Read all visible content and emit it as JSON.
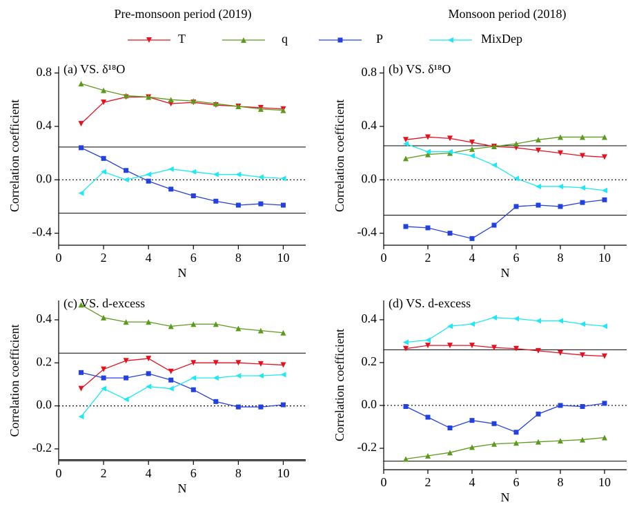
{
  "headers": [
    "Pre-monsoon period (2019)",
    "Monsoon period (2018)"
  ],
  "chart_data": [
    {
      "type": "line",
      "title": "(a) VS. δ¹⁸O",
      "x_label": "N",
      "y_label": "Correlation coefficient",
      "x": [
        1,
        2,
        3,
        4,
        5,
        6,
        7,
        8,
        9,
        10
      ],
      "xlim": [
        0,
        11
      ],
      "xticks": [
        0,
        2,
        4,
        6,
        8,
        10
      ],
      "ylim": [
        -0.49,
        0.85
      ],
      "yticks": [
        -0.4,
        {
          "value": 0,
          "label": "0.0"
        },
        0.4,
        0.8
      ],
      "reference_lines": [
        0.245,
        -0.25
      ],
      "zero_line": true,
      "series": [
        {
          "name": "T",
          "color": "#e8101e",
          "marker": "triangle-down",
          "values": [
            0.42,
            0.58,
            0.62,
            0.62,
            0.57,
            0.58,
            0.56,
            0.55,
            0.54,
            0.53
          ]
        },
        {
          "name": "q",
          "color": "#5c9a1c",
          "marker": "triangle-up",
          "values": [
            0.72,
            0.67,
            0.63,
            0.62,
            0.6,
            0.59,
            0.57,
            0.55,
            0.53,
            0.52
          ]
        },
        {
          "name": "P",
          "color": "#2340e0",
          "marker": "square",
          "values": [
            0.24,
            0.16,
            0.07,
            -0.01,
            -0.07,
            -0.12,
            -0.16,
            -0.19,
            -0.18,
            -0.19
          ]
        },
        {
          "name": "MixDep",
          "color": "#1ee8f5",
          "marker": "triangle-left",
          "values": [
            -0.1,
            0.06,
            0.0,
            0.04,
            0.08,
            0.06,
            0.04,
            0.04,
            0.02,
            0.01
          ]
        }
      ]
    },
    {
      "type": "line",
      "title": "(b) VS. δ¹⁸O",
      "x_label": "N",
      "y_label": "Correlation coefficient",
      "x": [
        1,
        2,
        3,
        4,
        5,
        6,
        7,
        8,
        9,
        10
      ],
      "xlim": [
        0,
        11
      ],
      "xticks": [
        0,
        2,
        4,
        6,
        8,
        10
      ],
      "ylim": [
        -0.49,
        0.85
      ],
      "yticks": [
        -0.4,
        {
          "value": 0,
          "label": "0.0"
        },
        0.4,
        0.8
      ],
      "reference_lines": [
        0.255,
        -0.265
      ],
      "zero_line": true,
      "series": [
        {
          "name": "T",
          "color": "#e8101e",
          "marker": "triangle-down",
          "values": [
            0.3,
            0.32,
            0.31,
            0.28,
            0.25,
            0.24,
            0.22,
            0.2,
            0.18,
            0.17
          ]
        },
        {
          "name": "q",
          "color": "#5c9a1c",
          "marker": "triangle-up",
          "values": [
            0.16,
            0.19,
            0.2,
            0.23,
            0.25,
            0.27,
            0.3,
            0.32,
            0.32,
            0.32
          ]
        },
        {
          "name": "P",
          "color": "#2340e0",
          "marker": "square",
          "values": [
            -0.35,
            -0.36,
            -0.4,
            -0.44,
            -0.34,
            -0.2,
            -0.19,
            -0.2,
            -0.17,
            -0.15
          ]
        },
        {
          "name": "MixDep",
          "color": "#1ee8f5",
          "marker": "triangle-left",
          "values": [
            0.27,
            0.21,
            0.21,
            0.18,
            0.11,
            0.01,
            -0.05,
            -0.05,
            -0.06,
            -0.08
          ]
        }
      ]
    },
    {
      "type": "line",
      "title": "(c) VS. d-excess",
      "x_label": "N",
      "y_label": "Correlation coefficient",
      "x": [
        1,
        2,
        3,
        4,
        5,
        6,
        7,
        8,
        9,
        10
      ],
      "xlim": [
        0,
        11
      ],
      "xticks": [
        0,
        2,
        4,
        6,
        8,
        10
      ],
      "ylim": [
        -0.255,
        0.49
      ],
      "yticks": [
        -0.2,
        {
          "value": 0,
          "label": "0.0"
        },
        0.2,
        0.4
      ],
      "reference_lines": [
        0.245,
        -0.25
      ],
      "zero_line": true,
      "series": [
        {
          "name": "T",
          "color": "#e8101e",
          "marker": "triangle-down",
          "values": [
            0.08,
            0.17,
            0.21,
            0.22,
            0.16,
            0.2,
            0.2,
            0.2,
            0.195,
            0.19
          ]
        },
        {
          "name": "q",
          "color": "#5c9a1c",
          "marker": "triangle-up",
          "values": [
            0.47,
            0.41,
            0.39,
            0.39,
            0.37,
            0.38,
            0.38,
            0.36,
            0.35,
            0.34
          ]
        },
        {
          "name": "P",
          "color": "#2340e0",
          "marker": "square",
          "values": [
            0.155,
            0.13,
            0.13,
            0.15,
            0.12,
            0.075,
            0.02,
            -0.005,
            -0.005,
            0.005
          ]
        },
        {
          "name": "MixDep",
          "color": "#1ee8f5",
          "marker": "triangle-left",
          "values": [
            -0.05,
            0.08,
            0.03,
            0.09,
            0.08,
            0.13,
            0.13,
            0.14,
            0.14,
            0.145
          ]
        }
      ]
    },
    {
      "type": "line",
      "title": "(d) VS. d-excess",
      "x_label": "N",
      "y_label": "Correlation coefficient",
      "x": [
        1,
        2,
        3,
        4,
        5,
        6,
        7,
        8,
        9,
        10
      ],
      "xlim": [
        0,
        11
      ],
      "xticks": [
        0,
        2,
        4,
        6,
        8,
        10
      ],
      "ylim": [
        -0.3,
        0.49
      ],
      "yticks": [
        -0.2,
        {
          "value": 0,
          "label": "0.0"
        },
        0.2,
        0.4
      ],
      "reference_lines": [
        0.26,
        -0.26
      ],
      "zero_line": true,
      "series": [
        {
          "name": "T",
          "color": "#e8101e",
          "marker": "triangle-down",
          "values": [
            0.265,
            0.28,
            0.28,
            0.28,
            0.27,
            0.265,
            0.255,
            0.245,
            0.235,
            0.23
          ]
        },
        {
          "name": "q",
          "color": "#5c9a1c",
          "marker": "triangle-up",
          "values": [
            -0.25,
            -0.235,
            -0.22,
            -0.195,
            -0.18,
            -0.175,
            -0.17,
            -0.165,
            -0.16,
            -0.15
          ]
        },
        {
          "name": "P",
          "color": "#2340e0",
          "marker": "square",
          "values": [
            -0.005,
            -0.055,
            -0.105,
            -0.07,
            -0.085,
            -0.125,
            -0.04,
            0.0,
            -0.005,
            0.01
          ]
        },
        {
          "name": "MixDep",
          "color": "#1ee8f5",
          "marker": "triangle-left",
          "values": [
            0.295,
            0.305,
            0.37,
            0.38,
            0.41,
            0.405,
            0.395,
            0.395,
            0.38,
            0.37
          ]
        }
      ]
    }
  ]
}
